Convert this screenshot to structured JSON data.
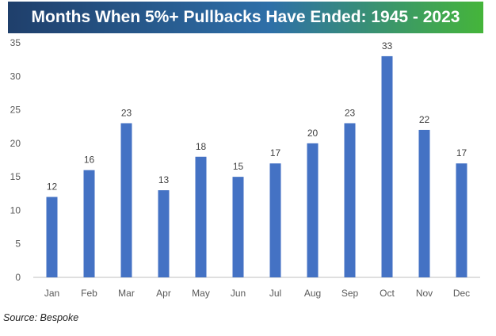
{
  "title": "Months When 5%+ Pullbacks Have Ended: 1945 - 2023",
  "source": "Source: Bespoke",
  "colors": {
    "banner_left": "#1f3f6b",
    "banner_mid": "#2e6fa8",
    "banner_right": "#45b53a",
    "bar": "#4472c4",
    "axis": "#bfbfbf",
    "tick_text": "#595959",
    "label_text": "#404040"
  },
  "chart_data": {
    "type": "bar",
    "title": "Months When 5%+ Pullbacks Have Ended: 1945 - 2023",
    "xlabel": "",
    "ylabel": "",
    "categories": [
      "Jan",
      "Feb",
      "Mar",
      "Apr",
      "May",
      "Jun",
      "Jul",
      "Aug",
      "Sep",
      "Oct",
      "Nov",
      "Dec"
    ],
    "values": [
      12,
      16,
      23,
      13,
      18,
      15,
      17,
      20,
      23,
      33,
      22,
      17
    ],
    "ylim": [
      0,
      35
    ],
    "yticks": [
      0,
      5,
      10,
      15,
      20,
      25,
      30,
      35
    ],
    "grid": false,
    "data_labels": true
  }
}
